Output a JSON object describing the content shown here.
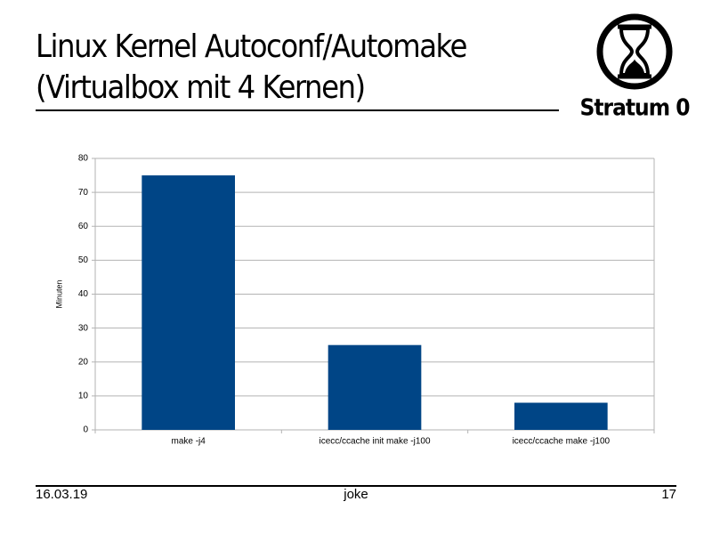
{
  "slide": {
    "title": [
      "Linux Kernel Autoconf/Automake",
      "(Virtualbox mit 4 Kernen)"
    ],
    "logo_text": "Stratum 0",
    "footer": {
      "date": "16.03.19",
      "center": "joke",
      "page": "17"
    }
  },
  "chart_data": {
    "type": "bar",
    "y_label": "Minuten",
    "categories": [
      "make -j4",
      "icecc/ccache init make -j100",
      "icecc/ccache make -j100"
    ],
    "values": [
      75,
      25,
      8
    ],
    "color": "#004586",
    "ylim": [
      0,
      80
    ],
    "yticks": [
      0,
      10,
      20,
      30,
      40,
      50,
      60,
      70,
      80
    ],
    "grid": true
  }
}
